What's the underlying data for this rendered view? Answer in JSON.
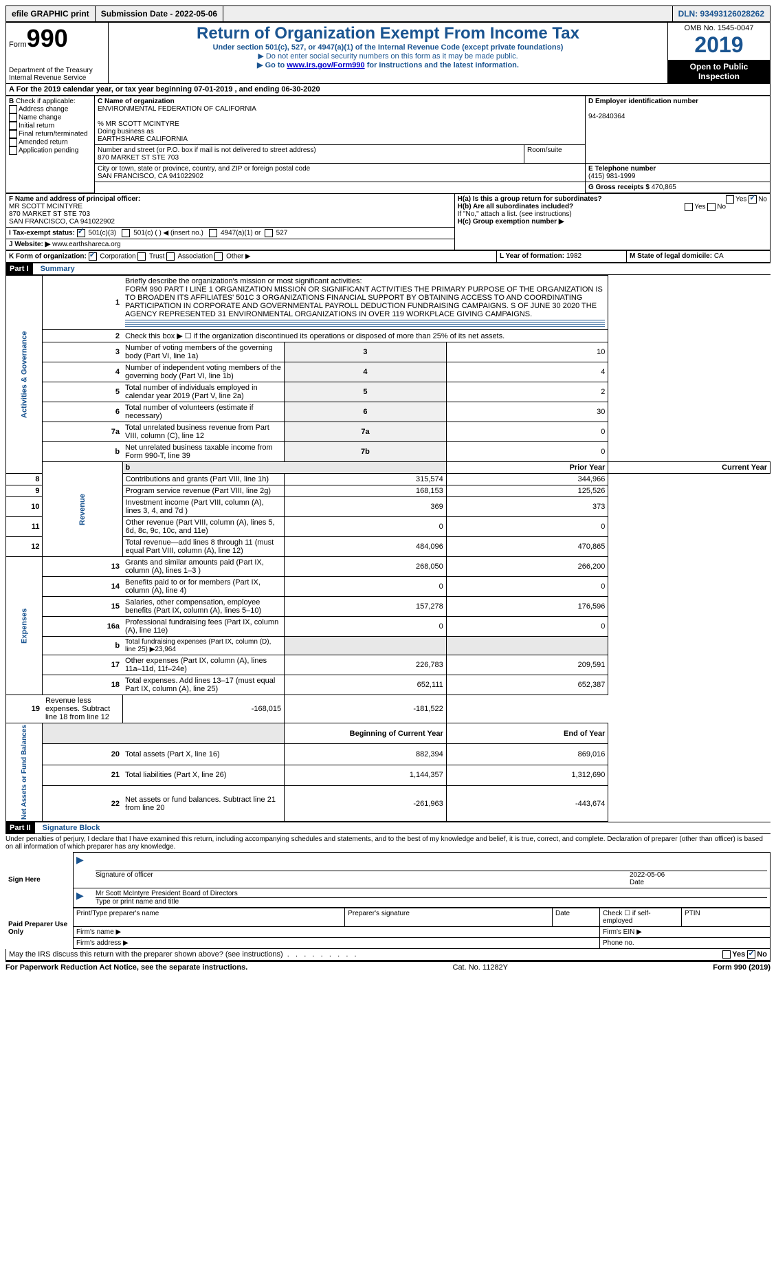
{
  "topbar": {
    "efile": "efile GRAPHIC print",
    "submission": "Submission Date - 2022-05-06",
    "dln": "DLN: 93493126028262"
  },
  "header": {
    "form_prefix": "Form",
    "form_num": "990",
    "dept1": "Department of the Treasury",
    "dept2": "Internal Revenue Service",
    "title": "Return of Organization Exempt From Income Tax",
    "subtitle": "Under section 501(c), 527, or 4947(a)(1) of the Internal Revenue Code (except private foundations)",
    "note1": "▶ Do not enter social security numbers on this form as it may be made public.",
    "note2_pre": "▶ Go to ",
    "note2_link": "www.irs.gov/Form990",
    "note2_post": " for instructions and the latest information.",
    "omb": "OMB No. 1545-0047",
    "year": "2019",
    "inspect": "Open to Public Inspection"
  },
  "sectionA": {
    "period": "For the 2019 calendar year, or tax year beginning 07-01-2019   , and ending 06-30-2020",
    "b_label": "Check if applicable:",
    "b_opts": [
      "Address change",
      "Name change",
      "Initial return",
      "Final return/terminated",
      "Amended return",
      "Application pending"
    ],
    "c_label": "C Name of organization",
    "c_name": "ENVIRONMENTAL FEDERATION OF CALIFORNIA",
    "c_care": "% MR SCOTT MCINTYRE",
    "c_dba_label": "Doing business as",
    "c_dba": "EARTHSHARE CALIFORNIA",
    "c_street_label": "Number and street (or P.O. box if mail is not delivered to street address)",
    "c_street": "870 MARKET ST STE 703",
    "c_room_label": "Room/suite",
    "c_city_label": "City or town, state or province, country, and ZIP or foreign postal code",
    "c_city": "SAN FRANCISCO, CA  941022902",
    "d_label": "D Employer identification number",
    "d_val": "94-2840364",
    "e_label": "E Telephone number",
    "e_val": "(415) 981-1999",
    "g_label": "G Gross receipts $",
    "g_val": "470,865",
    "f_label": "F  Name and address of principal officer:",
    "f_name": "MR SCOTT MCINTYRE",
    "f_street": "870 MARKET ST STE 703",
    "f_city": "SAN FRANCISCO, CA  941022902",
    "ha_label": "H(a)  Is this a group return for subordinates?",
    "hb_label": "H(b)  Are all subordinates included?",
    "hb_note": "If \"No,\" attach a list. (see instructions)",
    "hc_label": "H(c)  Group exemption number ▶",
    "yes": "Yes",
    "no": "No",
    "i_label": "I  Tax-exempt status:",
    "i_501c3": "501(c)(3)",
    "i_501c": "501(c) (  ) ◀ (insert no.)",
    "i_4947": "4947(a)(1) or",
    "i_527": "527",
    "j_label": "J  Website: ▶",
    "j_val": "www.earthshareca.org",
    "k_label": "K Form of organization:",
    "k_opts": [
      "Corporation",
      "Trust",
      "Association",
      "Other ▶"
    ],
    "l_label": "L Year of formation:",
    "l_val": "1982",
    "m_label": "M State of legal domicile:",
    "m_val": "CA"
  },
  "part1": {
    "header": "Part I",
    "title": "Summary",
    "side1": "Activities & Governance",
    "side2": "Revenue",
    "side3": "Expenses",
    "side4": "Net Assets or Fund Balances",
    "q1_label": "Briefly describe the organization's mission or most significant activities:",
    "q1_text": "FORM 990 PART I LINE 1 ORGANIZATION MISSION OR SIGNIFICANT ACTIVITIES THE PRIMARY PURPOSE OF THE ORGANIZATION IS TO BROADEN ITS AFFILIATES' 501C 3 ORGANIZATIONS FINANCIAL SUPPORT BY OBTAINING ACCESS TO AND COORDINATING PARTICIPATION IN CORPORATE AND GOVERNMENTAL PAYROLL DEDUCTION FUNDRAISING CAMPAIGNS. S OF JUNE 30 2020 THE AGENCY REPRESENTED 31 ENVIRONMENTAL ORGANIZATIONS IN OVER 119 WORKPLACE GIVING CAMPAIGNS.",
    "q2": "Check this box ▶ ☐  if the organization discontinued its operations or disposed of more than 25% of its net assets.",
    "rows_gov": [
      {
        "n": "3",
        "d": "Number of voting members of the governing body (Part VI, line 1a)",
        "c": "3",
        "v": "10"
      },
      {
        "n": "4",
        "d": "Number of independent voting members of the governing body (Part VI, line 1b)",
        "c": "4",
        "v": "4"
      },
      {
        "n": "5",
        "d": "Total number of individuals employed in calendar year 2019 (Part V, line 2a)",
        "c": "5",
        "v": "2"
      },
      {
        "n": "6",
        "d": "Total number of volunteers (estimate if necessary)",
        "c": "6",
        "v": "30"
      },
      {
        "n": "7a",
        "d": "Total unrelated business revenue from Part VIII, column (C), line 12",
        "c": "7a",
        "v": "0"
      },
      {
        "n": "b",
        "d": "Net unrelated business taxable income from Form 990-T, line 39",
        "c": "7b",
        "v": "0"
      }
    ],
    "hdr_prior": "Prior Year",
    "hdr_current": "Current Year",
    "rows_rev": [
      {
        "n": "8",
        "d": "Contributions and grants (Part VIII, line 1h)",
        "p": "315,574",
        "c": "344,966"
      },
      {
        "n": "9",
        "d": "Program service revenue (Part VIII, line 2g)",
        "p": "168,153",
        "c": "125,526"
      },
      {
        "n": "10",
        "d": "Investment income (Part VIII, column (A), lines 3, 4, and 7d )",
        "p": "369",
        "c": "373"
      },
      {
        "n": "11",
        "d": "Other revenue (Part VIII, column (A), lines 5, 6d, 8c, 9c, 10c, and 11e)",
        "p": "0",
        "c": "0"
      },
      {
        "n": "12",
        "d": "Total revenue—add lines 8 through 11 (must equal Part VIII, column (A), line 12)",
        "p": "484,096",
        "c": "470,865"
      }
    ],
    "rows_exp": [
      {
        "n": "13",
        "d": "Grants and similar amounts paid (Part IX, column (A), lines 1–3 )",
        "p": "268,050",
        "c": "266,200"
      },
      {
        "n": "14",
        "d": "Benefits paid to or for members (Part IX, column (A), line 4)",
        "p": "0",
        "c": "0"
      },
      {
        "n": "15",
        "d": "Salaries, other compensation, employee benefits (Part IX, column (A), lines 5–10)",
        "p": "157,278",
        "c": "176,596"
      },
      {
        "n": "16a",
        "d": "Professional fundraising fees (Part IX, column (A), line 11e)",
        "p": "0",
        "c": "0"
      },
      {
        "n": "b",
        "d": "Total fundraising expenses (Part IX, column (D), line 25) ▶23,964",
        "p": "",
        "c": "",
        "grey": true
      },
      {
        "n": "17",
        "d": "Other expenses (Part IX, column (A), lines 11a–11d, 11f–24e)",
        "p": "226,783",
        "c": "209,591"
      },
      {
        "n": "18",
        "d": "Total expenses. Add lines 13–17 (must equal Part IX, column (A), line 25)",
        "p": "652,111",
        "c": "652,387"
      },
      {
        "n": "19",
        "d": "Revenue less expenses. Subtract line 18 from line 12",
        "p": "-168,015",
        "c": "-181,522"
      }
    ],
    "hdr_boy": "Beginning of Current Year",
    "hdr_eoy": "End of Year",
    "rows_net": [
      {
        "n": "20",
        "d": "Total assets (Part X, line 16)",
        "p": "882,394",
        "c": "869,016"
      },
      {
        "n": "21",
        "d": "Total liabilities (Part X, line 26)",
        "p": "1,144,357",
        "c": "1,312,690"
      },
      {
        "n": "22",
        "d": "Net assets or fund balances. Subtract line 21 from line 20",
        "p": "-261,963",
        "c": "-443,674"
      }
    ]
  },
  "part2": {
    "header": "Part II",
    "title": "Signature Block",
    "declaration": "Under penalties of perjury, I declare that I have examined this return, including accompanying schedules and statements, and to the best of my knowledge and belief, it is true, correct, and complete. Declaration of preparer (other than officer) is based on all information of which preparer has any knowledge.",
    "sign_here": "Sign Here",
    "sig_officer": "Signature of officer",
    "sig_date": "Date",
    "sig_date_val": "2022-05-06",
    "sig_name": "Mr Scott McIntyre  President Board of Directors",
    "sig_name_label": "Type or print name and title",
    "paid_prep": "Paid Preparer Use Only",
    "pp_name": "Print/Type preparer's name",
    "pp_sig": "Preparer's signature",
    "pp_date": "Date",
    "pp_check": "Check ☐ if self-employed",
    "pp_ptin": "PTIN",
    "pp_firm": "Firm's name    ▶",
    "pp_ein": "Firm's EIN ▶",
    "pp_addr": "Firm's address ▶",
    "pp_phone": "Phone no.",
    "discuss": "May the IRS discuss this return with the preparer shown above? (see instructions)"
  },
  "footer": {
    "left": "For Paperwork Reduction Act Notice, see the separate instructions.",
    "mid": "Cat. No. 11282Y",
    "right": "Form 990 (2019)"
  }
}
